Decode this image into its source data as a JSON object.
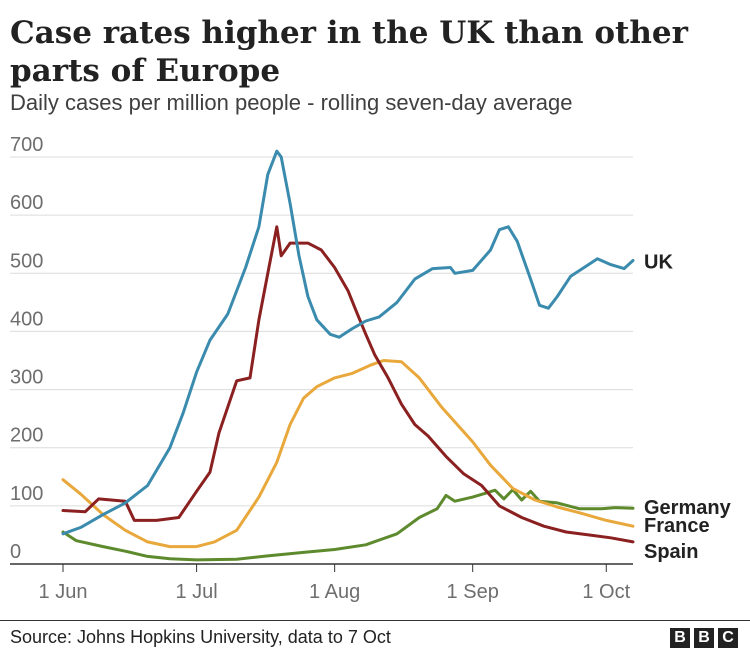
{
  "title": "Case rates higher in the UK than other parts of Europe",
  "subtitle": "Daily cases per million people - rolling seven-day average",
  "source": "Source: Johns Hopkins University, data to 7 Oct",
  "logo": [
    "B",
    "B",
    "C"
  ],
  "chart_data": {
    "type": "line",
    "title": "Case rates higher in the UK than other parts of Europe",
    "subtitle": "Daily cases per million people - rolling seven-day average",
    "xlim": [
      "2021-06-01",
      "2021-10-07"
    ],
    "ylim": [
      0,
      700
    ],
    "yticks": [
      0,
      100,
      200,
      300,
      400,
      500,
      600,
      700
    ],
    "ytick_labels": [
      "0",
      "100",
      "200",
      "300",
      "400",
      "500",
      "600",
      "700"
    ],
    "xticks": [
      "2021-06-01",
      "2021-07-01",
      "2021-08-01",
      "2021-09-01",
      "2021-10-01"
    ],
    "xtick_labels": [
      "1 Jun",
      "1 Jul",
      "1 Aug",
      "1 Sep",
      "1 Oct"
    ],
    "grid": "horizontal",
    "legend": "direct labels at right end of lines",
    "series": [
      {
        "name": "UK",
        "color": "#3a8bad",
        "points": [
          [
            "2021-06-01",
            52
          ],
          [
            "2021-06-05",
            63
          ],
          [
            "2021-06-10",
            85
          ],
          [
            "2021-06-15",
            105
          ],
          [
            "2021-06-20",
            135
          ],
          [
            "2021-06-25",
            200
          ],
          [
            "2021-06-28",
            260
          ],
          [
            "2021-07-01",
            330
          ],
          [
            "2021-07-04",
            385
          ],
          [
            "2021-07-08",
            430
          ],
          [
            "2021-07-12",
            510
          ],
          [
            "2021-07-15",
            580
          ],
          [
            "2021-07-17",
            670
          ],
          [
            "2021-07-19",
            710
          ],
          [
            "2021-07-20",
            700
          ],
          [
            "2021-07-22",
            620
          ],
          [
            "2021-07-24",
            530
          ],
          [
            "2021-07-26",
            460
          ],
          [
            "2021-07-28",
            420
          ],
          [
            "2021-07-31",
            395
          ],
          [
            "2021-08-02",
            390
          ],
          [
            "2021-08-05",
            405
          ],
          [
            "2021-08-08",
            418
          ],
          [
            "2021-08-11",
            425
          ],
          [
            "2021-08-15",
            450
          ],
          [
            "2021-08-19",
            490
          ],
          [
            "2021-08-23",
            508
          ],
          [
            "2021-08-27",
            510
          ],
          [
            "2021-08-28",
            500
          ],
          [
            "2021-09-01",
            505
          ],
          [
            "2021-09-05",
            540
          ],
          [
            "2021-09-07",
            575
          ],
          [
            "2021-09-09",
            580
          ],
          [
            "2021-09-11",
            555
          ],
          [
            "2021-09-14",
            490
          ],
          [
            "2021-09-16",
            445
          ],
          [
            "2021-09-18",
            440
          ],
          [
            "2021-09-20",
            460
          ],
          [
            "2021-09-23",
            495
          ],
          [
            "2021-09-27",
            515
          ],
          [
            "2021-09-29",
            525
          ],
          [
            "2021-10-02",
            515
          ],
          [
            "2021-10-05",
            508
          ],
          [
            "2021-10-07",
            522
          ]
        ]
      },
      {
        "name": "Germany",
        "color": "#5e8a2e",
        "points": [
          [
            "2021-06-01",
            55
          ],
          [
            "2021-06-04",
            40
          ],
          [
            "2021-06-10",
            30
          ],
          [
            "2021-06-15",
            22
          ],
          [
            "2021-06-20",
            13
          ],
          [
            "2021-06-25",
            9
          ],
          [
            "2021-07-01",
            7
          ],
          [
            "2021-07-10",
            8
          ],
          [
            "2021-07-17",
            14
          ],
          [
            "2021-07-25",
            20
          ],
          [
            "2021-08-01",
            25
          ],
          [
            "2021-08-08",
            33
          ],
          [
            "2021-08-15",
            52
          ],
          [
            "2021-08-20",
            80
          ],
          [
            "2021-08-24",
            95
          ],
          [
            "2021-08-26",
            118
          ],
          [
            "2021-08-28",
            108
          ],
          [
            "2021-09-01",
            115
          ],
          [
            "2021-09-04",
            122
          ],
          [
            "2021-09-06",
            127
          ],
          [
            "2021-09-08",
            112
          ],
          [
            "2021-09-10",
            128
          ],
          [
            "2021-09-12",
            110
          ],
          [
            "2021-09-14",
            125
          ],
          [
            "2021-09-16",
            108
          ],
          [
            "2021-09-20",
            105
          ],
          [
            "2021-09-25",
            95
          ],
          [
            "2021-09-30",
            95
          ],
          [
            "2021-10-03",
            97
          ],
          [
            "2021-10-07",
            96
          ]
        ]
      },
      {
        "name": "France",
        "color": "#e9a83c",
        "points": [
          [
            "2021-06-01",
            145
          ],
          [
            "2021-06-05",
            120
          ],
          [
            "2021-06-10",
            85
          ],
          [
            "2021-06-15",
            58
          ],
          [
            "2021-06-20",
            38
          ],
          [
            "2021-06-25",
            30
          ],
          [
            "2021-07-01",
            30
          ],
          [
            "2021-07-05",
            38
          ],
          [
            "2021-07-10",
            58
          ],
          [
            "2021-07-15",
            115
          ],
          [
            "2021-07-19",
            175
          ],
          [
            "2021-07-22",
            240
          ],
          [
            "2021-07-25",
            285
          ],
          [
            "2021-07-28",
            305
          ],
          [
            "2021-08-01",
            320
          ],
          [
            "2021-08-05",
            328
          ],
          [
            "2021-08-09",
            342
          ],
          [
            "2021-08-12",
            350
          ],
          [
            "2021-08-16",
            348
          ],
          [
            "2021-08-20",
            320
          ],
          [
            "2021-08-25",
            270
          ],
          [
            "2021-09-01",
            210
          ],
          [
            "2021-09-05",
            170
          ],
          [
            "2021-09-10",
            130
          ],
          [
            "2021-09-15",
            110
          ],
          [
            "2021-09-20",
            98
          ],
          [
            "2021-09-25",
            88
          ],
          [
            "2021-10-01",
            75
          ],
          [
            "2021-10-07",
            65
          ]
        ]
      },
      {
        "name": "Spain",
        "color": "#8b2020",
        "points": [
          [
            "2021-06-01",
            92
          ],
          [
            "2021-06-06",
            90
          ],
          [
            "2021-06-09",
            112
          ],
          [
            "2021-06-15",
            108
          ],
          [
            "2021-06-17",
            75
          ],
          [
            "2021-06-22",
            75
          ],
          [
            "2021-06-27",
            80
          ],
          [
            "2021-07-01",
            125
          ],
          [
            "2021-07-04",
            158
          ],
          [
            "2021-07-06",
            225
          ],
          [
            "2021-07-10",
            315
          ],
          [
            "2021-07-13",
            320
          ],
          [
            "2021-07-15",
            420
          ],
          [
            "2021-07-17",
            500
          ],
          [
            "2021-07-19",
            580
          ],
          [
            "2021-07-20",
            530
          ],
          [
            "2021-07-22",
            552
          ],
          [
            "2021-07-26",
            552
          ],
          [
            "2021-07-29",
            540
          ],
          [
            "2021-08-01",
            510
          ],
          [
            "2021-08-04",
            470
          ],
          [
            "2021-08-06",
            432
          ],
          [
            "2021-08-08",
            395
          ],
          [
            "2021-08-10",
            360
          ],
          [
            "2021-08-13",
            320
          ],
          [
            "2021-08-16",
            275
          ],
          [
            "2021-08-19",
            240
          ],
          [
            "2021-08-22",
            220
          ],
          [
            "2021-08-26",
            185
          ],
          [
            "2021-08-30",
            155
          ],
          [
            "2021-09-03",
            135
          ],
          [
            "2021-09-07",
            100
          ],
          [
            "2021-09-12",
            80
          ],
          [
            "2021-09-17",
            65
          ],
          [
            "2021-09-22",
            55
          ],
          [
            "2021-09-27",
            50
          ],
          [
            "2021-10-02",
            45
          ],
          [
            "2021-10-07",
            38
          ]
        ]
      }
    ]
  }
}
